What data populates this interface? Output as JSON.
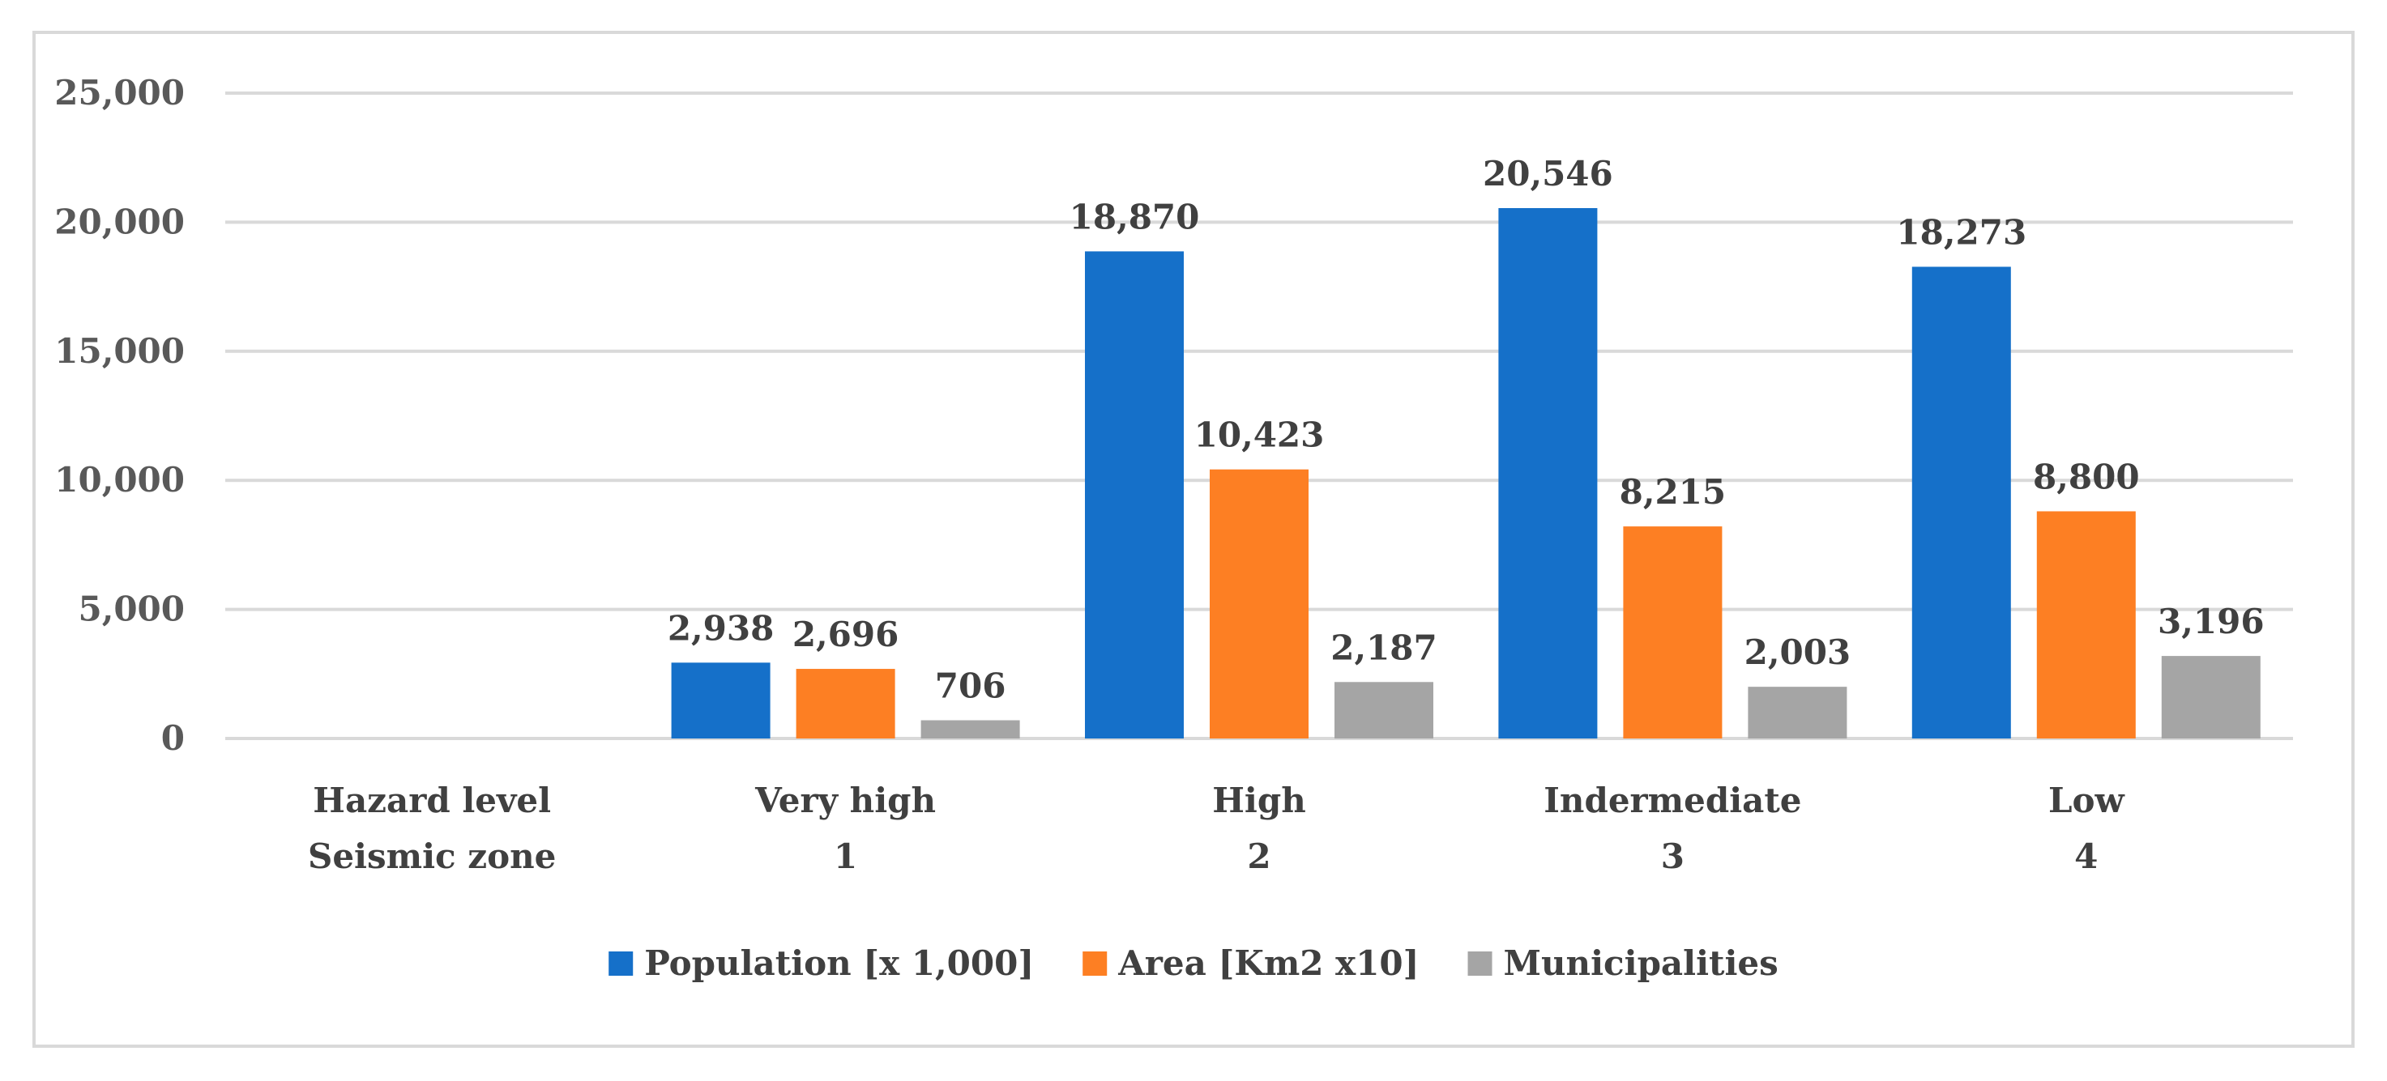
{
  "chart_data": {
    "type": "bar",
    "title": "",
    "xlabel": "",
    "ylabel": "",
    "ylim": [
      0,
      25000
    ],
    "yticks": [
      0,
      5000,
      10000,
      15000,
      20000,
      25000
    ],
    "ytick_labels": [
      "0",
      "5,000",
      "10,000",
      "15,000",
      "20,000",
      "25,000"
    ],
    "grid": true,
    "legend_position": "bottom",
    "categories": [
      {
        "line1": "Hazard level",
        "line2": "Seismic zone"
      },
      {
        "line1": "Very high",
        "line2": "1"
      },
      {
        "line1": "High",
        "line2": "2"
      },
      {
        "line1": "Indermediate",
        "line2": "3"
      },
      {
        "line1": "Low",
        "line2": "4"
      }
    ],
    "series": [
      {
        "name": "Population [x 1,000]",
        "color": "#1570C9",
        "values": [
          null,
          2938,
          18870,
          20546,
          18273
        ],
        "labels": [
          "",
          "2,938",
          "18,870",
          "20,546",
          "18,273"
        ]
      },
      {
        "name": "Area [Km2 x10]",
        "color": "#FD7F23",
        "values": [
          null,
          2696,
          10423,
          8215,
          8800
        ],
        "labels": [
          "",
          "2,696",
          "10,423",
          "8,215",
          "8,800"
        ]
      },
      {
        "name": "Municipalities",
        "color": "#A5A5A5",
        "values": [
          null,
          706,
          2187,
          2003,
          3196
        ],
        "labels": [
          "",
          "706",
          "2,187",
          "2,003",
          "3,196"
        ]
      }
    ]
  }
}
